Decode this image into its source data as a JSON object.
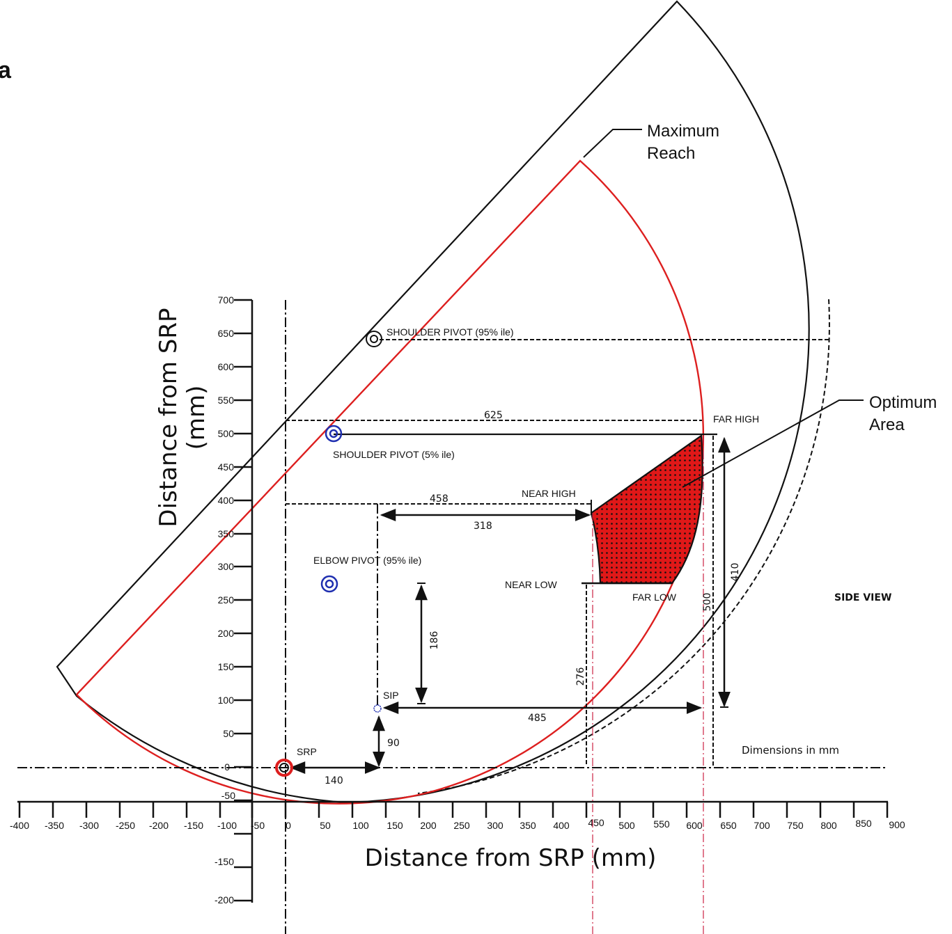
{
  "panel_label": "a",
  "axis": {
    "y_title": "Distance from SRP\n(mm)",
    "x_title": "Distance from SRP (mm)",
    "y_ticks": [
      "700",
      "650",
      "600",
      "550",
      "500",
      "450",
      "400",
      "350",
      "300",
      "250",
      "200",
      "150",
      "100",
      "50",
      "0",
      "-50",
      "-150",
      "-200"
    ],
    "x_ticks": [
      "-400",
      "-350",
      "-300",
      "-250",
      "-200",
      "-150",
      "-100",
      "-50",
      "0",
      "50",
      "100",
      "150",
      "200",
      "250",
      "300",
      "350",
      "400",
      "450",
      "500",
      "550",
      "600",
      "650",
      "700",
      "750",
      "800",
      "850",
      "900"
    ]
  },
  "callouts": {
    "max_reach_1": "Maximum",
    "max_reach_2": "Reach",
    "optimum_1": "Optimum",
    "optimum_2": "Area"
  },
  "labels": {
    "shoulder95": "SHOULDER PIVOT (95% ile)",
    "shoulder5": "SHOULDER PIVOT (5% ile)",
    "elbow95": "ELBOW PIVOT (95% ile)",
    "far_high": "FAR HIGH",
    "near_high": "NEAR HIGH",
    "near_low": "NEAR LOW",
    "far_low": "FAR LOW",
    "sip": "SIP",
    "srp": "SRP",
    "side_view": "SIDE VIEW",
    "dimensions": "Dimensions in mm"
  },
  "dimensions": {
    "d625": "625",
    "d458": "458",
    "d318": "318",
    "d410": "410",
    "d500": "500",
    "d186": "186",
    "d276": "276",
    "d485": "485",
    "d90": "90",
    "d140": "140"
  },
  "colors": {
    "max_reach": "#dd1f1f",
    "optimum_fill": "#e01818",
    "pivot_5": "#1f2fb0",
    "line": "#111111",
    "guide": "#cc2244"
  }
}
